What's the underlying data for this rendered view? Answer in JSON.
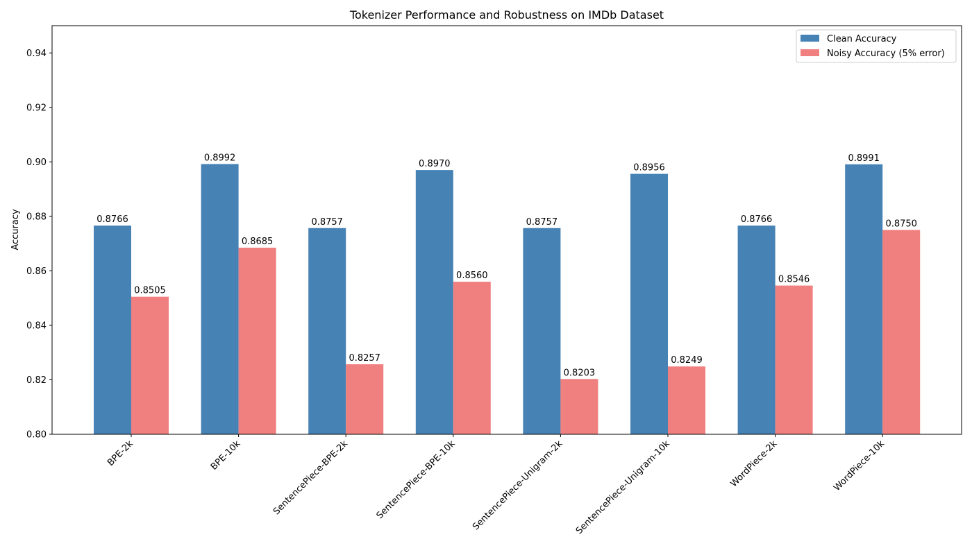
{
  "chart_data": {
    "type": "bar",
    "title": "Tokenizer Performance and Robustness on IMDb Dataset",
    "xlabel": "",
    "ylabel": "Accuracy",
    "ylim": [
      0.8,
      0.95
    ],
    "yticks": [
      "0.80",
      "0.82",
      "0.84",
      "0.86",
      "0.88",
      "0.90",
      "0.92",
      "0.94"
    ],
    "categories": [
      "BPE-2k",
      "BPE-10k",
      "SentencePiece-BPE-2k",
      "SentencePiece-BPE-10k",
      "SentencePiece-Unigram-2k",
      "SentencePiece-Unigram-10k",
      "WordPiece-2k",
      "WordPiece-10k"
    ],
    "series": [
      {
        "name": "Clean Accuracy",
        "color": "#4682b4",
        "values": [
          0.8766,
          0.8992,
          0.8757,
          0.897,
          0.8757,
          0.8956,
          0.8766,
          0.8991
        ],
        "labels": [
          "0.8766",
          "0.8992",
          "0.8757",
          "0.8970",
          "0.8757",
          "0.8956",
          "0.8766",
          "0.8991"
        ]
      },
      {
        "name": "Noisy Accuracy (5% error)",
        "color": "#f08080",
        "values": [
          0.8505,
          0.8685,
          0.8257,
          0.856,
          0.8203,
          0.8249,
          0.8546,
          0.875
        ],
        "labels": [
          "0.8505",
          "0.8685",
          "0.8257",
          "0.8560",
          "0.8203",
          "0.8249",
          "0.8546",
          "0.8750"
        ]
      }
    ],
    "grid": false,
    "legend_position": "top-right"
  }
}
